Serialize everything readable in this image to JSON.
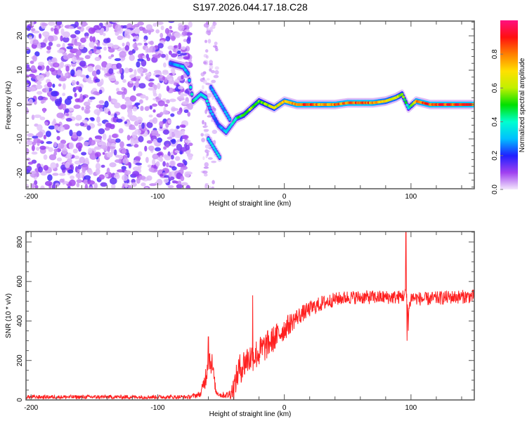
{
  "title": "S197.2026.044.17.18.C28",
  "chart_data": [
    {
      "type": "heatmap",
      "name": "spectrogram",
      "xlabel": "Height of straight line (km)",
      "ylabel": "Frequency (Hz)",
      "xlim": [
        -204,
        150
      ],
      "ylim": [
        -24.5,
        24.3
      ],
      "xticks": [
        -200,
        -100,
        0,
        100
      ],
      "xtick_labels": [
        "-200",
        "-100",
        "0",
        "100"
      ],
      "yticks": [
        -20,
        -10,
        0,
        10,
        20
      ],
      "ytick_labels": [
        "-20",
        "-10",
        "0",
        "10",
        "20"
      ],
      "colorbar": {
        "label": "Normalized spectral amplitude",
        "range": [
          0,
          1
        ],
        "ticks": [
          0.0,
          0.2,
          0.4,
          0.6,
          0.8
        ],
        "tick_labels": [
          "0.0",
          "0.2",
          "0.4",
          "0.6",
          "0.8"
        ],
        "colormap": [
          "#f4e8fc",
          "#a040f0",
          "#2020ff",
          "#00c0ff",
          "#00ffd0",
          "#00e000",
          "#c0f000",
          "#ffe000",
          "#ff8000",
          "#ff1010",
          "#ff1080"
        ]
      },
      "noise_region_x": [
        -204,
        -74
      ],
      "ridge": [
        {
          "x": -90,
          "f": 12,
          "a": 0.25
        },
        {
          "x": -80,
          "f": 11,
          "a": 0.35
        },
        {
          "x": -76,
          "f": 9,
          "a": 0.3
        },
        {
          "x": -72,
          "f": 1,
          "a": 0.45
        },
        {
          "x": -66,
          "f": 3,
          "a": 0.4
        },
        {
          "x": -62,
          "f": 2,
          "a": 0.4
        },
        {
          "x": -58,
          "f": -2,
          "a": 0.3
        },
        {
          "x": -52,
          "f": -6,
          "a": 0.25
        },
        {
          "x": -46,
          "f": -8,
          "a": 0.35
        },
        {
          "x": -42,
          "f": -6,
          "a": 0.4
        },
        {
          "x": -38,
          "f": -4,
          "a": 0.45
        },
        {
          "x": -32,
          "f": -3,
          "a": 0.55
        },
        {
          "x": -26,
          "f": -1,
          "a": 0.6
        },
        {
          "x": -20,
          "f": 1,
          "a": 0.55
        },
        {
          "x": -14,
          "f": 0,
          "a": 0.6
        },
        {
          "x": -8,
          "f": -1,
          "a": 0.65
        },
        {
          "x": 0,
          "f": 1,
          "a": 0.75
        },
        {
          "x": 10,
          "f": 0,
          "a": 0.85
        },
        {
          "x": 20,
          "f": 0,
          "a": 0.9
        },
        {
          "x": 30,
          "f": 0,
          "a": 0.8
        },
        {
          "x": 40,
          "f": 0,
          "a": 0.85
        },
        {
          "x": 50,
          "f": 0.5,
          "a": 0.85
        },
        {
          "x": 60,
          "f": 0.5,
          "a": 0.9
        },
        {
          "x": 70,
          "f": 0.5,
          "a": 0.85
        },
        {
          "x": 80,
          "f": 1,
          "a": 0.7
        },
        {
          "x": 88,
          "f": 2,
          "a": 0.7
        },
        {
          "x": 93,
          "f": 3,
          "a": 0.6
        },
        {
          "x": 98,
          "f": -1,
          "a": 0.4
        },
        {
          "x": 104,
          "f": 1,
          "a": 0.8
        },
        {
          "x": 115,
          "f": 0,
          "a": 0.9
        },
        {
          "x": 130,
          "f": 0,
          "a": 0.9
        },
        {
          "x": 150,
          "f": 0,
          "a": 0.9
        }
      ],
      "branches": [
        {
          "x": [
            -60,
            -50
          ],
          "f": [
            -10,
            -16
          ],
          "a": 0.35
        },
        {
          "x": [
            -58,
            -42
          ],
          "f": [
            5,
            -5
          ],
          "a": 0.3
        }
      ]
    },
    {
      "type": "line",
      "name": "snr",
      "xlabel": "Height of straight line (km)",
      "ylabel": "SNR (10 * v/v)",
      "xlim": [
        -204,
        150
      ],
      "ylim": [
        0,
        853
      ],
      "xticks": [
        -200,
        -100,
        0,
        100
      ],
      "xtick_labels": [
        "-200",
        "-100",
        "0",
        "100"
      ],
      "yticks": [
        0,
        200,
        400,
        600,
        800
      ],
      "ytick_labels": [
        "0",
        "200",
        "400",
        "600",
        "800"
      ],
      "color": "#ff2020",
      "trend": {
        "x": [
          -204,
          -75,
          -66,
          -62,
          -60,
          -57,
          -54,
          -50,
          -44,
          -40,
          -36,
          -30,
          -20,
          -10,
          0,
          10,
          20,
          30,
          40,
          50,
          60,
          80,
          90,
          95,
          96,
          98,
          100,
          110,
          130,
          150
        ],
        "y": [
          15,
          15,
          30,
          120,
          220,
          180,
          40,
          25,
          25,
          60,
          150,
          200,
          240,
          300,
          360,
          420,
          460,
          490,
          510,
          520,
          520,
          520,
          520,
          530,
          540,
          440,
          520,
          510,
          520,
          525
        ],
        "noise": [
          10,
          10,
          15,
          60,
          70,
          60,
          15,
          15,
          20,
          60,
          80,
          80,
          80,
          70,
          60,
          45,
          40,
          40,
          35,
          35,
          35,
          35,
          35,
          35,
          35,
          35,
          35,
          35,
          35,
          35
        ]
      },
      "spikes": [
        {
          "x": 96,
          "y": 860
        },
        {
          "x": 97,
          "y": 300
        },
        {
          "x": 98,
          "y": 350
        },
        {
          "x": -25,
          "y": 530
        },
        {
          "x": -60,
          "y": 320
        }
      ]
    }
  ]
}
